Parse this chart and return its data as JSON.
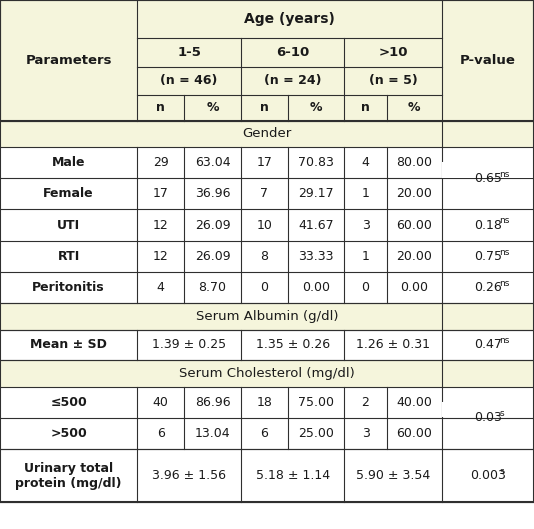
{
  "header_bg": "#f5f5dc",
  "white_bg": "#ffffff",
  "border_color": "#2f2f2f",
  "figsize": [
    5.34,
    5.29
  ],
  "dpi": 100,
  "sections": [
    {
      "type": "section_header",
      "label": "Gender"
    },
    {
      "type": "data_row",
      "label": "Male",
      "n1": "29",
      "p1": "63.04",
      "n2": "17",
      "p2": "70.83",
      "n3": "4",
      "p3": "80.00",
      "pval": "0.65",
      "sig": "ns",
      "pval_rowspan": 2
    },
    {
      "type": "data_row",
      "label": "Female",
      "n1": "17",
      "p1": "36.96",
      "n2": "7",
      "p2": "29.17",
      "n3": "1",
      "p3": "20.00",
      "pval": "",
      "sig": "",
      "pval_rowspan": 0
    },
    {
      "type": "data_row",
      "label": "UTI",
      "n1": "12",
      "p1": "26.09",
      "n2": "10",
      "p2": "41.67",
      "n3": "3",
      "p3": "60.00",
      "pval": "0.18",
      "sig": "ns",
      "pval_rowspan": 1
    },
    {
      "type": "data_row",
      "label": "RTI",
      "n1": "12",
      "p1": "26.09",
      "n2": "8",
      "p2": "33.33",
      "n3": "1",
      "p3": "20.00",
      "pval": "0.75",
      "sig": "ns",
      "pval_rowspan": 1
    },
    {
      "type": "data_row",
      "label": "Peritonitis",
      "n1": "4",
      "p1": "8.70",
      "n2": "0",
      "p2": "0.00",
      "n3": "0",
      "p3": "0.00",
      "pval": "0.26",
      "sig": "ns",
      "pval_rowspan": 1
    },
    {
      "type": "section_header",
      "label": "Serum Albumin (g/dl)"
    },
    {
      "type": "span_row",
      "label": "Mean ± SD",
      "v1": "1.39 ± 0.25",
      "v2": "1.35 ± 0.26",
      "v3": "1.26 ± 0.31",
      "pval": "0.47",
      "sig": "ns",
      "pval_rowspan": 1
    },
    {
      "type": "section_header",
      "label": "Serum Cholesterol (mg/dl)"
    },
    {
      "type": "data_row",
      "label": "≤500",
      "n1": "40",
      "p1": "86.96",
      "n2": "18",
      "p2": "75.00",
      "n3": "2",
      "p3": "40.00",
      "pval": "0.03",
      "sig": "s",
      "pval_rowspan": 2
    },
    {
      "type": "data_row",
      "label": ">500",
      "n1": "6",
      "p1": "13.04",
      "n2": "6",
      "p2": "25.00",
      "n3": "3",
      "p3": "60.00",
      "pval": "",
      "sig": "",
      "pval_rowspan": 0
    },
    {
      "type": "span_row",
      "label": "Urinary total\nprotein (mg/dl)",
      "v1": "3.96 ± 1.56",
      "v2": "5.18 ± 1.14",
      "v3": "5.90 ± 3.54",
      "pval": "0.003",
      "sig": "s",
      "pval_rowspan": 1
    }
  ]
}
